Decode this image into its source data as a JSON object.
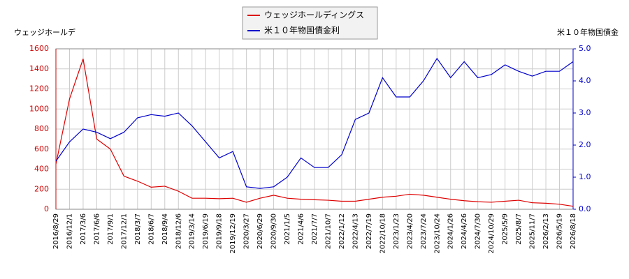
{
  "chart_data": {
    "type": "line",
    "y_label": "ウェッジホールデ",
    "y2_label": "米１０年物国債金",
    "categories": [
      "2016/8/29",
      "2016/12/1",
      "2017/3/6",
      "2017/6/6",
      "2017/9/1",
      "2017/12/1",
      "2018/3/7",
      "2018/6/7",
      "2018/9/4",
      "2018/12/6",
      "2019/3/14",
      "2019/6/19",
      "2019/9/18",
      "2019/12/19",
      "2020/3/27",
      "2020/6/29",
      "2020/9/30",
      "2021/1/5",
      "2021/4/6",
      "2021/7/7",
      "2021/10/7",
      "2022/1/12",
      "2022/4/13",
      "2022/7/19",
      "2022/10/18",
      "2023/1/23",
      "2023/4/20",
      "2023/7/24",
      "2023/10/24",
      "2024/1/26",
      "2024/4/26",
      "2024/7/30",
      "2024/10/29",
      "2025/5/9",
      "2025/8/7",
      "2025/11/7",
      "2026/2/13",
      "2026/5/19",
      "2026/8/18"
    ],
    "series": [
      {
        "name": "ウェッジホールディングス",
        "color": "#dd0000",
        "values": [
          450,
          1100,
          1500,
          700,
          600,
          330,
          280,
          220,
          230,
          180,
          110,
          110,
          105,
          110,
          70,
          110,
          140,
          110,
          100,
          95,
          90,
          80,
          80,
          100,
          120,
          130,
          150,
          140,
          120,
          100,
          85,
          75,
          70,
          80,
          90,
          65,
          60,
          50,
          30
        ]
      },
      {
        "name": "米１０年物国債金利",
        "color": "#0000cc",
        "axis": "y2",
        "values": [
          1.5,
          2.1,
          2.5,
          2.4,
          2.2,
          2.4,
          2.85,
          2.95,
          2.9,
          3.0,
          2.6,
          2.1,
          1.6,
          1.8,
          0.7,
          0.65,
          0.7,
          1.0,
          1.6,
          1.3,
          1.3,
          1.7,
          2.8,
          3.0,
          4.1,
          3.5,
          3.5,
          4.0,
          4.7,
          4.1,
          4.6,
          4.1,
          4.2,
          4.5,
          4.3,
          4.15,
          4.3,
          4.3,
          4.6
        ]
      }
    ],
    "ylim": [
      0,
      1600
    ],
    "yticks": [
      0,
      200,
      400,
      600,
      800,
      1000,
      1200,
      1400,
      1600
    ],
    "y2lim": [
      0,
      5
    ],
    "y2ticks": [
      {
        "value": 0,
        "label": "0.0"
      },
      {
        "value": 1,
        "label": "1.0"
      },
      {
        "value": 2,
        "label": "2.0"
      },
      {
        "value": 3,
        "label": "3.0"
      },
      {
        "value": 4,
        "label": "4.0"
      },
      {
        "value": 5,
        "label": "5.0"
      }
    ],
    "grid": true
  }
}
